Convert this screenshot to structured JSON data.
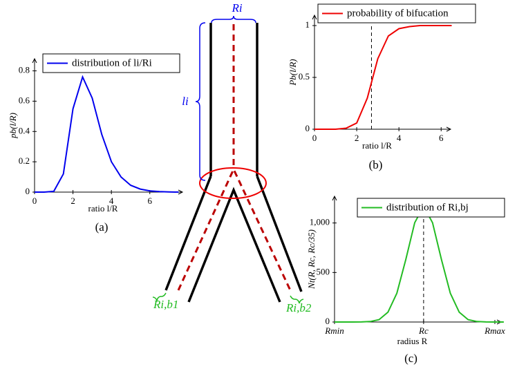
{
  "chart_data": [
    {
      "type": "line",
      "caption": "(a)",
      "x_label": "ratio l/R",
      "y_label": "pb(l/R)",
      "x": [
        0,
        0.5,
        1,
        1.5,
        2,
        2.5,
        3,
        3.5,
        4,
        4.5,
        5,
        5.5,
        6,
        6.5,
        7,
        7.5
      ],
      "series": [
        {
          "name": "distribution of li/Ri",
          "color": "#0000ee",
          "values": [
            0,
            0,
            0.005,
            0.12,
            0.55,
            0.76,
            0.62,
            0.38,
            0.2,
            0.1,
            0.045,
            0.02,
            0.008,
            0.003,
            0.001,
            0
          ]
        }
      ],
      "xlim": [
        0,
        7.7
      ],
      "ylim": [
        0,
        0.88
      ],
      "xticks": [
        0,
        2,
        4,
        6
      ],
      "yticks": [
        0,
        0.2,
        0.4,
        0.6,
        0.8
      ]
    },
    {
      "type": "line",
      "caption": "(b)",
      "x_label": "ratio l/R",
      "y_label": "Pb(l/R)",
      "x": [
        0,
        0.5,
        1,
        1.5,
        2,
        2.5,
        3,
        3.5,
        4,
        4.5,
        5,
        5.5,
        6,
        6.5
      ],
      "series": [
        {
          "name": "probability of bifucation",
          "color": "#ee0000",
          "values": [
            0,
            0,
            0,
            0.01,
            0.06,
            0.3,
            0.68,
            0.9,
            0.97,
            0.99,
            1,
            1,
            1,
            1
          ]
        }
      ],
      "marker_x": 2.7,
      "xlim": [
        0,
        6.45
      ],
      "ylim": [
        0,
        1.1
      ],
      "xticks": [
        0,
        2,
        4,
        6
      ],
      "yticks": [
        0,
        0.5,
        1
      ]
    },
    {
      "type": "line",
      "caption": "(c)",
      "x_label": "radius R",
      "y_label": "Nt(R, Rc, Rc/35)",
      "x": [
        0,
        0.1,
        0.2,
        0.3,
        0.4,
        0.5,
        0.6,
        0.7,
        0.8,
        0.9,
        1,
        1.1,
        1.2,
        1.3,
        1.4,
        1.5,
        1.6,
        1.7,
        1.8,
        1.9
      ],
      "series": [
        {
          "name": "distribution of Ri,bj",
          "color": "#22bb22",
          "values": [
            0,
            0,
            0,
            1,
            5,
            24,
            99,
            291,
            631,
            1003,
            1170,
            1003,
            631,
            291,
            99,
            24,
            5,
            1,
            0,
            0
          ]
        }
      ],
      "marker_x": 1,
      "xlim": [
        0,
        1.87
      ],
      "ylim": [
        0,
        1270
      ],
      "xticks": [
        {
          "value": 0,
          "label": "Rmin"
        },
        {
          "value": 1,
          "label": "Rc"
        },
        {
          "value": 1.8,
          "label": "Rmax"
        }
      ],
      "yticks": [
        0,
        500,
        {
          "value": 1000,
          "label": "1,000"
        }
      ]
    }
  ],
  "diagram": {
    "labels": {
      "parent_radius": "Ri",
      "length": "li",
      "branch_1": "Ri,b1",
      "branch_2": "Ri,b2"
    }
  }
}
